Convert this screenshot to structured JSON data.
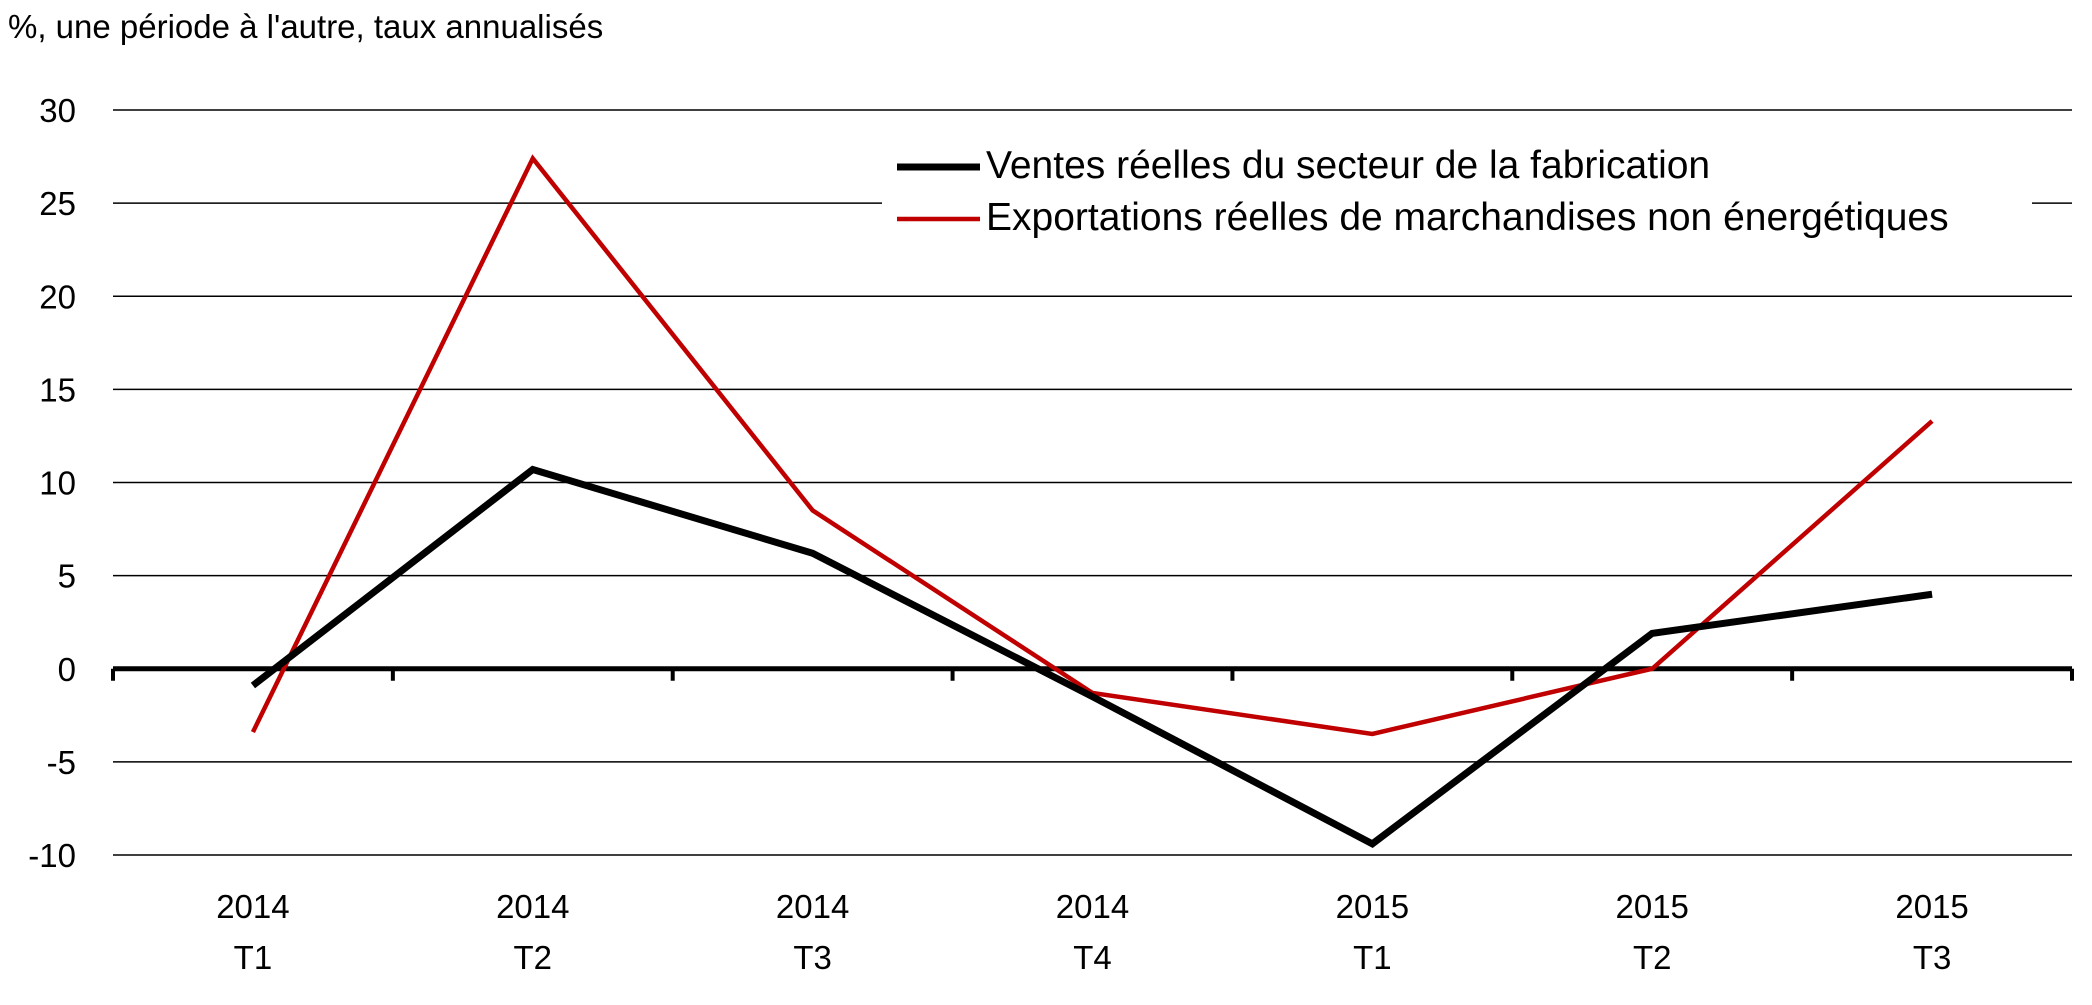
{
  "chart_data": {
    "type": "line",
    "unit_label": "%, une période à l'autre, taux annualisés",
    "categories": [
      [
        "2014",
        "T1"
      ],
      [
        "2014",
        "T2"
      ],
      [
        "2014",
        "T3"
      ],
      [
        "2014",
        "T4"
      ],
      [
        "2015",
        "T1"
      ],
      [
        "2015",
        "T2"
      ],
      [
        "2015",
        "T3"
      ]
    ],
    "series": [
      {
        "name": "Ventes réelles du secteur de la fabrication",
        "color": "#000000",
        "values": [
          -0.9,
          10.7,
          6.2,
          -1.5,
          -9.4,
          1.9,
          4.0
        ]
      },
      {
        "name": "Exportations réelles de marchandises non énergétiques",
        "color": "#c00000",
        "values": [
          -3.4,
          27.4,
          8.5,
          -1.3,
          -3.5,
          0.0,
          13.3
        ]
      }
    ],
    "ylim": [
      -10,
      30
    ],
    "yticks": [
      30,
      25,
      20,
      15,
      10,
      5,
      0,
      -5,
      -10
    ],
    "grid": true,
    "legend_position": "top-right"
  }
}
